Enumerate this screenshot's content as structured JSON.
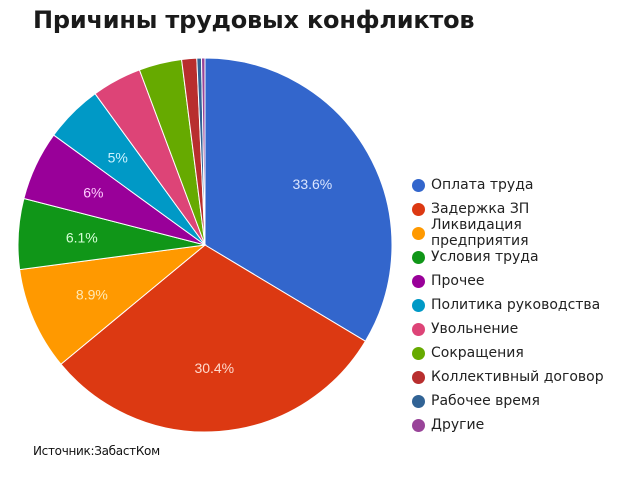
{
  "title": "Причины трудовых конфликтов",
  "source": "Источник:ЗабастКом",
  "chart_data": {
    "type": "pie",
    "title": "Причины трудовых конфликтов",
    "legend_position": "right",
    "categories": [
      "Оплата труда",
      "Задержка ЗП",
      "Ликвидация предприятия",
      "Условия труда",
      "Прочее",
      "Политика руководства",
      "Увольнение",
      "Сокращения",
      "Коллективный договор",
      "Рабочее время",
      "Другие"
    ],
    "values": [
      33.6,
      30.4,
      8.9,
      6.1,
      6.0,
      5.0,
      4.3,
      3.7,
      1.3,
      0.4,
      0.3
    ],
    "labels": [
      "33.6%",
      "30.4%",
      "8.9%",
      "6.1%",
      "6%",
      "5%",
      "",
      "",
      "",
      "",
      ""
    ],
    "colors": [
      "#3366cc",
      "#dc3912",
      "#ff9900",
      "#109618",
      "#990099",
      "#0099c6",
      "#dd4477",
      "#66aa00",
      "#b82e2e",
      "#316395",
      "#994499"
    ],
    "label_colors": [
      "#dce6ff",
      "#ffd9cc",
      "#ffe9b3",
      "#d8ffd8",
      "#ffccff",
      "#ccf2ff",
      "",
      "",
      "",
      "",
      ""
    ]
  },
  "legend": [
    {
      "label": "Оплата труда",
      "color": "#3366cc"
    },
    {
      "label": "Задержка ЗП",
      "color": "#dc3912"
    },
    {
      "label": "Ликвидация предприятия",
      "color": "#ff9900"
    },
    {
      "label": "Условия труда",
      "color": "#109618"
    },
    {
      "label": "Прочее",
      "color": "#990099"
    },
    {
      "label": "Политика руководства",
      "color": "#0099c6"
    },
    {
      "label": "Увольнение",
      "color": "#dd4477"
    },
    {
      "label": "Сокращения",
      "color": "#66aa00"
    },
    {
      "label": "Коллективный договор",
      "color": "#b82e2e"
    },
    {
      "label": "Рабочее время",
      "color": "#316395"
    },
    {
      "label": "Другие",
      "color": "#994499"
    }
  ]
}
